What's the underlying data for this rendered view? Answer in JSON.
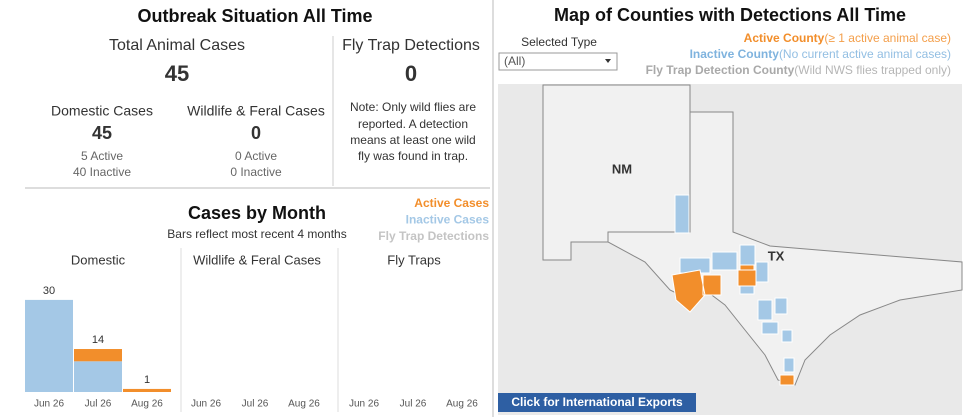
{
  "summary": {
    "title": "Outbreak Situation All Time",
    "total_label": "Total Animal Cases",
    "total": 45,
    "fly_label": "Fly Trap Detections",
    "fly": 0,
    "domestic_label": "Domestic Cases",
    "domestic": 45,
    "domestic_active": "5 Active",
    "domestic_inactive": "40 Inactive",
    "wildlife_label": "Wildlife & Feral Cases",
    "wildlife": 0,
    "wildlife_active": "0 Active",
    "wildlife_inactive": "0 Inactive",
    "note": [
      "Note: Only wild flies are",
      "reported. A detection",
      "means at least one wild",
      "fly was found in trap."
    ]
  },
  "chart_data": {
    "type": "bar",
    "stacked": true,
    "title": "Cases by Month",
    "subtitle": "Bars reflect most recent 4 months",
    "panels": [
      "Domestic",
      "Wildlife & Feral Cases",
      "Fly Traps"
    ],
    "categories": [
      "Jun 26",
      "Jul 26",
      "Aug 26"
    ],
    "series": [
      {
        "name": "Active Cases",
        "color": "#f28e2b",
        "panel": 0,
        "values": [
          0,
          4,
          1
        ]
      },
      {
        "name": "Inactive Cases",
        "color": "#a4c8e6",
        "panel": 0,
        "values": [
          30,
          10,
          0
        ]
      },
      {
        "name": "Fly Trap Detections",
        "color": "#c4c4c4",
        "panel": 2,
        "values": [
          0,
          0,
          0
        ]
      }
    ],
    "totals": [
      30,
      14,
      1
    ]
  },
  "map": {
    "title": "Map of Counties with Detections All Time",
    "filter_label": "Selected Type",
    "filter_value": "(All)",
    "legend": [
      {
        "name": "Active County",
        "desc": "(≥ 1 active animal case)",
        "color": "#f28e2b"
      },
      {
        "name": "Inactive County",
        "desc": "(No current active animal cases)",
        "color": "#7fb3de"
      },
      {
        "name": "Fly Trap Detection County",
        "desc": "(Wild NWS flies trapped only)",
        "color": "#a9a9a9"
      }
    ],
    "labels": [
      "NM",
      "TX"
    ],
    "button": "Click for International Exports"
  }
}
